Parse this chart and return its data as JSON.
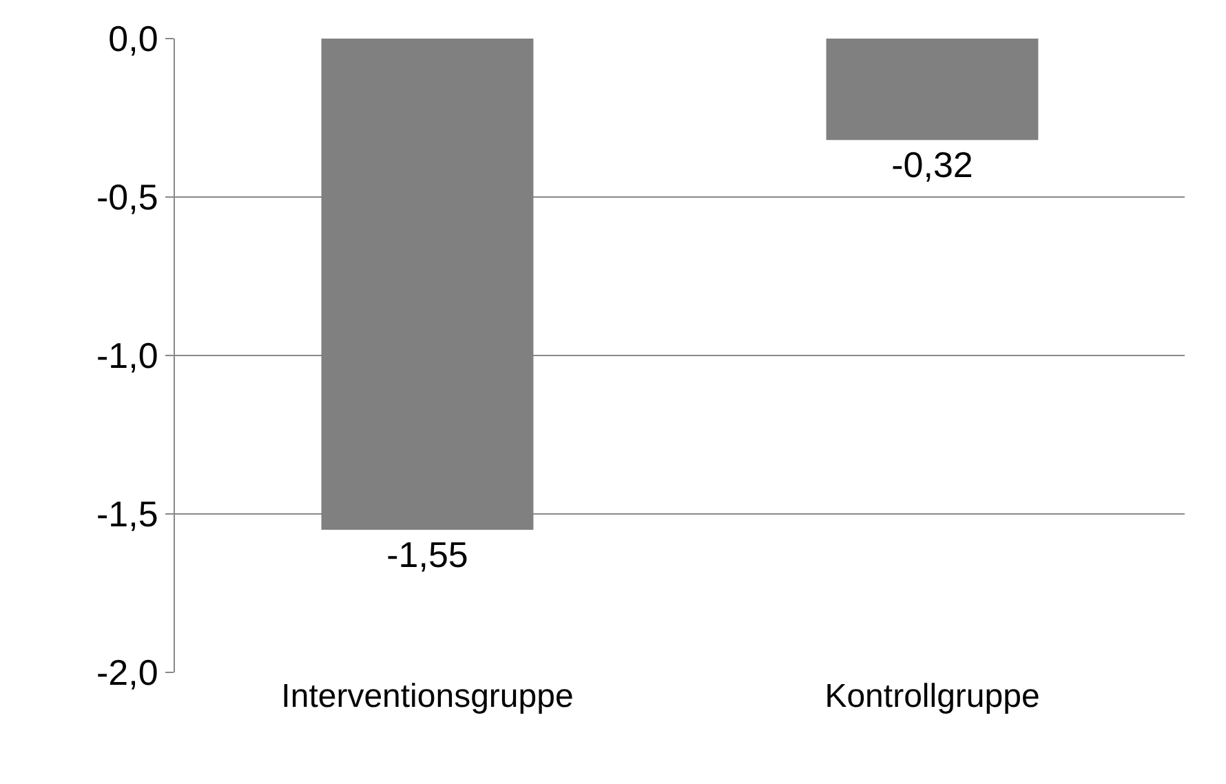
{
  "chart_data": {
    "type": "bar",
    "categories": [
      "Interventionsgruppe",
      "Kontrollgruppe"
    ],
    "values": [
      -1.55,
      -0.32
    ],
    "value_labels": [
      "-1,55",
      "-0,32"
    ],
    "color": "#808080",
    "ylim": [
      -2.0,
      0.0
    ],
    "yticks": [
      {
        "value": 0,
        "label": "0,0"
      },
      {
        "value": -0.5,
        "label": "-0,5"
      },
      {
        "value": -1.0,
        "label": "-1,0"
      },
      {
        "value": -1.5,
        "label": "-1,5"
      },
      {
        "value": -2.0,
        "label": "-2,0"
      }
    ],
    "grid": "y"
  }
}
